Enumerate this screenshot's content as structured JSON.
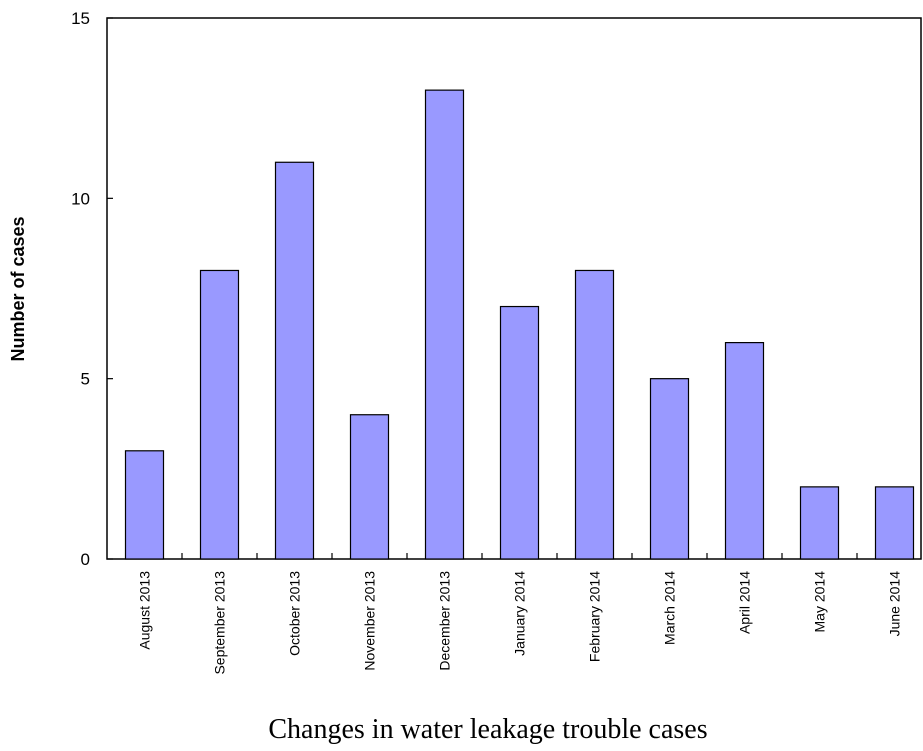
{
  "chart_data": {
    "type": "bar",
    "title": "",
    "caption": "Changes in water leakage trouble cases",
    "xlabel": "",
    "ylabel": "Number of cases",
    "ylim": [
      0,
      15
    ],
    "yticks": [
      0,
      5,
      10,
      15
    ],
    "grid": false,
    "legend": "none",
    "bar_color": "#9999ff",
    "categories": [
      "August 2013",
      "September 2013",
      "October 2013",
      "November 2013",
      "December 2013",
      "January 2014",
      "February 2014",
      "March 2014",
      "April 2014",
      "May 2014",
      "June 2014"
    ],
    "values": [
      3,
      8,
      11,
      4,
      13,
      7,
      8,
      5,
      6,
      2,
      2
    ]
  }
}
